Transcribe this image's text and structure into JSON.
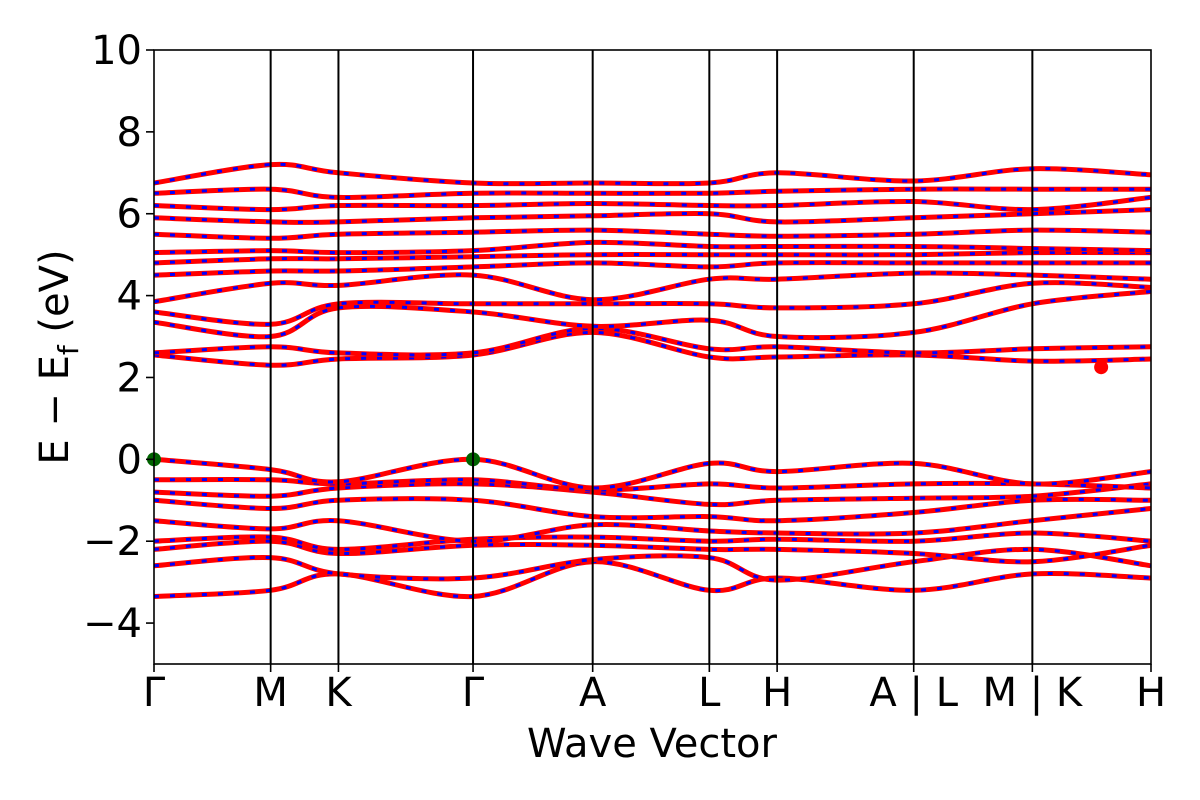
{
  "chart_data": {
    "type": "line",
    "title": "",
    "xlabel": "Wave Vector",
    "ylabel": "E − E_f (eV)",
    "ylabel_main": "E − E",
    "ylabel_sub": "f",
    "ylabel_unit": " (eV)",
    "ylim": [
      -5,
      10
    ],
    "yticks": [
      -4,
      -2,
      0,
      2,
      4,
      6,
      8,
      10
    ],
    "ytick_labels": [
      "−4",
      "−2",
      "0",
      "2",
      "4",
      "6",
      "8",
      "10"
    ],
    "xlim": [
      0,
      1
    ],
    "kpath_labels": [
      "Γ",
      "M",
      "K",
      "Γ",
      "A",
      "L",
      "H",
      "A | L",
      "M | K",
      "H"
    ],
    "kpath_positions": [
      0.0,
      0.117,
      0.185,
      0.32,
      0.44,
      0.557,
      0.625,
      0.762,
      0.881,
      1.0
    ],
    "grid": false,
    "series_colors": {
      "spin_up": "#ff0000",
      "spin_down": "#0000ff"
    },
    "vbm_color": "#006400",
    "cbm_color": "#ff0000",
    "vbm_points": [
      {
        "x": 0.0,
        "y": 0.0
      },
      {
        "x": 0.32,
        "y": 0.0
      }
    ],
    "cbm_points": [
      {
        "x": 0.95,
        "y": 2.25
      }
    ],
    "bands": [
      {
        "x": [
          0.0,
          0.117,
          0.185,
          0.32,
          0.44,
          0.557,
          0.625,
          0.762,
          0.881,
          1.0
        ],
        "y": [
          -3.35,
          -3.2,
          -2.8,
          -3.35,
          -2.5,
          -3.2,
          -2.9,
          -3.2,
          -2.8,
          -2.9
        ]
      },
      {
        "x": [
          0.0,
          0.117,
          0.185,
          0.32,
          0.44,
          0.557,
          0.625,
          0.762,
          0.881,
          1.0
        ],
        "y": [
          -2.6,
          -2.4,
          -2.8,
          -2.9,
          -2.45,
          -2.4,
          -2.95,
          -2.5,
          -2.2,
          -2.6
        ]
      },
      {
        "x": [
          0.0,
          0.117,
          0.185,
          0.32,
          0.44,
          0.557,
          0.625,
          0.762,
          0.881,
          1.0
        ],
        "y": [
          -2.2,
          -2.0,
          -2.3,
          -2.1,
          -2.1,
          -2.2,
          -2.2,
          -2.3,
          -2.5,
          -2.1
        ]
      },
      {
        "x": [
          0.0,
          0.117,
          0.185,
          0.32,
          0.44,
          0.557,
          0.625,
          0.762,
          0.881,
          1.0
        ],
        "y": [
          -2.0,
          -1.9,
          -2.2,
          -1.95,
          -1.9,
          -2.0,
          -1.95,
          -2.0,
          -1.8,
          -2.0
        ]
      },
      {
        "x": [
          0.0,
          0.117,
          0.185,
          0.32,
          0.44,
          0.557,
          0.625,
          0.762,
          0.881,
          1.0
        ],
        "y": [
          -1.5,
          -1.7,
          -1.5,
          -2.0,
          -1.6,
          -1.75,
          -1.8,
          -1.8,
          -1.5,
          -1.2
        ]
      },
      {
        "x": [
          0.0,
          0.117,
          0.185,
          0.32,
          0.44,
          0.557,
          0.625,
          0.762,
          0.881,
          1.0
        ],
        "y": [
          -1.0,
          -1.2,
          -1.0,
          -1.0,
          -1.4,
          -1.4,
          -1.5,
          -1.3,
          -1.0,
          -1.0
        ]
      },
      {
        "x": [
          0.0,
          0.117,
          0.185,
          0.32,
          0.44,
          0.557,
          0.625,
          0.762,
          0.881,
          1.0
        ],
        "y": [
          -0.8,
          -0.9,
          -0.7,
          -0.6,
          -0.8,
          -1.1,
          -1.0,
          -0.95,
          -0.9,
          -0.6
        ]
      },
      {
        "x": [
          0.0,
          0.117,
          0.185,
          0.32,
          0.44,
          0.557,
          0.625,
          0.762,
          0.881,
          1.0
        ],
        "y": [
          -0.5,
          -0.5,
          -0.6,
          -0.5,
          -0.75,
          -0.6,
          -0.7,
          -0.6,
          -0.6,
          -0.7
        ]
      },
      {
        "x": [
          0.0,
          0.117,
          0.185,
          0.32,
          0.44,
          0.557,
          0.625,
          0.762,
          0.881,
          1.0
        ],
        "y": [
          0.0,
          -0.25,
          -0.55,
          0.0,
          -0.7,
          -0.1,
          -0.3,
          -0.1,
          -0.6,
          -0.3
        ]
      },
      {
        "x": [
          0.0,
          0.117,
          0.185,
          0.32,
          0.44,
          0.557,
          0.625,
          0.762,
          0.881,
          1.0
        ],
        "y": [
          2.55,
          2.3,
          2.45,
          2.55,
          3.1,
          2.5,
          2.5,
          2.55,
          2.4,
          2.45
        ]
      },
      {
        "x": [
          0.0,
          0.117,
          0.185,
          0.32,
          0.44,
          0.557,
          0.625,
          0.762,
          0.881,
          1.0
        ],
        "y": [
          2.6,
          2.75,
          2.6,
          2.6,
          3.2,
          2.7,
          2.75,
          2.6,
          2.7,
          2.75
        ]
      },
      {
        "x": [
          0.0,
          0.117,
          0.185,
          0.32,
          0.44,
          0.557,
          0.625,
          0.762,
          0.881,
          1.0
        ],
        "y": [
          3.35,
          3.0,
          3.7,
          3.6,
          3.25,
          3.4,
          3.0,
          3.1,
          3.8,
          4.1
        ]
      },
      {
        "x": [
          0.0,
          0.117,
          0.185,
          0.32,
          0.44,
          0.557,
          0.625,
          0.762,
          0.881,
          1.0
        ],
        "y": [
          3.6,
          3.3,
          3.8,
          3.8,
          3.8,
          3.8,
          3.7,
          3.8,
          4.3,
          4.2
        ]
      },
      {
        "x": [
          0.0,
          0.117,
          0.185,
          0.32,
          0.44,
          0.557,
          0.625,
          0.762,
          0.881,
          1.0
        ],
        "y": [
          3.85,
          4.3,
          4.25,
          4.5,
          3.9,
          4.4,
          4.4,
          4.55,
          4.5,
          4.4
        ]
      },
      {
        "x": [
          0.0,
          0.117,
          0.185,
          0.32,
          0.44,
          0.557,
          0.625,
          0.762,
          0.881,
          1.0
        ],
        "y": [
          4.5,
          4.6,
          4.6,
          4.7,
          4.8,
          4.7,
          4.8,
          4.8,
          4.8,
          4.8
        ]
      },
      {
        "x": [
          0.0,
          0.117,
          0.185,
          0.32,
          0.44,
          0.557,
          0.625,
          0.762,
          0.881,
          1.0
        ],
        "y": [
          4.8,
          4.9,
          4.9,
          4.95,
          5.0,
          5.0,
          5.0,
          5.0,
          5.05,
          5.05
        ]
      },
      {
        "x": [
          0.0,
          0.117,
          0.185,
          0.32,
          0.44,
          0.557,
          0.625,
          0.762,
          0.881,
          1.0
        ],
        "y": [
          5.05,
          5.1,
          5.05,
          5.1,
          5.3,
          5.2,
          5.2,
          5.2,
          5.15,
          5.1
        ]
      },
      {
        "x": [
          0.0,
          0.117,
          0.185,
          0.32,
          0.44,
          0.557,
          0.625,
          0.762,
          0.881,
          1.0
        ],
        "y": [
          5.5,
          5.4,
          5.5,
          5.55,
          5.6,
          5.5,
          5.45,
          5.5,
          5.6,
          5.55
        ]
      },
      {
        "x": [
          0.0,
          0.117,
          0.185,
          0.32,
          0.44,
          0.557,
          0.625,
          0.762,
          0.881,
          1.0
        ],
        "y": [
          5.9,
          5.8,
          5.8,
          5.9,
          5.95,
          6.0,
          5.8,
          5.9,
          6.0,
          6.1
        ]
      },
      {
        "x": [
          0.0,
          0.117,
          0.185,
          0.32,
          0.44,
          0.557,
          0.625,
          0.762,
          0.881,
          1.0
        ],
        "y": [
          6.2,
          6.1,
          6.2,
          6.2,
          6.25,
          6.2,
          6.2,
          6.3,
          6.1,
          6.4
        ]
      },
      {
        "x": [
          0.0,
          0.117,
          0.185,
          0.32,
          0.44,
          0.557,
          0.625,
          0.762,
          0.881,
          1.0
        ],
        "y": [
          6.5,
          6.6,
          6.4,
          6.5,
          6.5,
          6.5,
          6.55,
          6.6,
          6.6,
          6.6
        ]
      },
      {
        "x": [
          0.0,
          0.117,
          0.185,
          0.32,
          0.44,
          0.557,
          0.625,
          0.762,
          0.881,
          1.0
        ],
        "y": [
          6.75,
          7.2,
          7.0,
          6.75,
          6.75,
          6.75,
          7.0,
          6.8,
          7.1,
          6.95
        ]
      }
    ]
  }
}
